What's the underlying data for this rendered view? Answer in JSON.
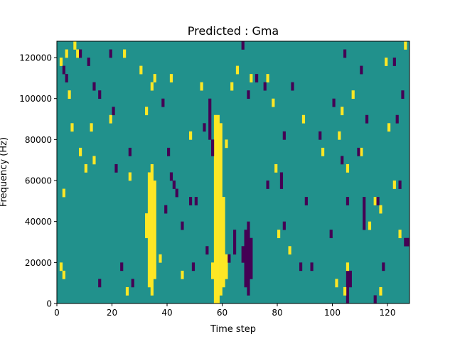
{
  "chart_data": {
    "type": "heatmap",
    "title": "Predicted : Gma",
    "xlabel": "Time step",
    "ylabel": "Frequency (Hz)",
    "xlim": [
      0,
      128
    ],
    "ylim": [
      0,
      128000
    ],
    "n_cols": 128,
    "n_rows": 32,
    "row_hz": 4000,
    "xticks": [
      0,
      20,
      40,
      60,
      80,
      100,
      120
    ],
    "xtick_labels": [
      "0",
      "20",
      "40",
      "60",
      "80",
      "100",
      "120"
    ],
    "yticks": [
      0,
      20000,
      40000,
      60000,
      80000,
      100000,
      120000
    ],
    "ytick_labels": [
      "0",
      "20000",
      "40000",
      "60000",
      "80000",
      "100000",
      "120000"
    ],
    "colormap": {
      "0": "#440154",
      "1": "#21918c",
      "2": "#fde725"
    },
    "background_value": 1,
    "segments": [
      [
        33,
        2,
        15,
        2
      ],
      [
        34,
        1,
        16,
        2
      ],
      [
        35,
        3,
        14,
        2
      ],
      [
        32,
        8,
        10,
        2
      ],
      [
        57,
        0,
        22,
        2
      ],
      [
        58,
        0,
        22,
        2
      ],
      [
        59,
        1,
        21,
        2
      ],
      [
        60,
        2,
        12,
        2
      ],
      [
        61,
        3,
        5,
        2
      ],
      [
        56,
        3,
        4,
        2
      ],
      [
        68,
        2,
        8,
        0
      ],
      [
        69,
        1,
        9,
        0
      ],
      [
        70,
        3,
        7,
        0
      ],
      [
        67,
        5,
        6,
        0
      ],
      [
        105,
        0,
        3,
        0
      ],
      [
        106,
        2,
        3,
        0
      ],
      [
        126,
        7,
        7,
        0
      ],
      [
        127,
        7,
        7,
        0
      ],
      [
        81,
        14,
        15,
        0
      ],
      [
        55,
        20,
        24,
        0
      ],
      [
        56,
        18,
        19,
        0
      ],
      [
        64,
        6,
        8,
        0
      ],
      [
        111,
        9,
        12,
        0
      ]
    ],
    "points": [
      [
        1,
        29,
        2
      ],
      [
        3,
        30,
        2
      ],
      [
        6,
        31,
        2
      ],
      [
        7,
        30,
        2
      ],
      [
        2,
        13,
        2
      ],
      [
        1,
        4,
        2
      ],
      [
        2,
        3,
        2
      ],
      [
        4,
        25,
        2
      ],
      [
        5,
        21,
        2
      ],
      [
        8,
        18,
        2
      ],
      [
        10,
        16,
        2
      ],
      [
        12,
        21,
        2
      ],
      [
        13,
        17,
        2
      ],
      [
        19,
        22,
        2
      ],
      [
        24,
        30,
        2
      ],
      [
        26,
        15,
        2
      ],
      [
        30,
        28,
        2
      ],
      [
        32,
        23,
        2
      ],
      [
        34,
        26,
        2
      ],
      [
        35,
        27,
        2
      ],
      [
        41,
        27,
        2
      ],
      [
        48,
        20,
        2
      ],
      [
        52,
        26,
        2
      ],
      [
        61,
        19,
        2
      ],
      [
        63,
        26,
        2
      ],
      [
        65,
        28,
        2
      ],
      [
        70,
        27,
        2
      ],
      [
        76,
        27,
        2
      ],
      [
        79,
        16,
        2
      ],
      [
        80,
        8,
        2
      ],
      [
        78,
        24,
        2
      ],
      [
        84,
        6,
        2
      ],
      [
        89,
        22,
        2
      ],
      [
        96,
        18,
        2
      ],
      [
        102,
        20,
        2
      ],
      [
        103,
        23,
        2
      ],
      [
        105,
        16,
        2
      ],
      [
        105,
        4,
        2
      ],
      [
        107,
        25,
        2
      ],
      [
        110,
        18,
        2
      ],
      [
        113,
        9,
        2
      ],
      [
        115,
        12,
        2
      ],
      [
        117,
        11,
        2
      ],
      [
        120,
        21,
        2
      ],
      [
        122,
        14,
        2
      ],
      [
        119,
        29,
        2
      ],
      [
        126,
        31,
        2
      ],
      [
        124,
        8,
        2
      ],
      [
        101,
        2,
        2
      ],
      [
        117,
        1,
        2
      ],
      [
        104,
        1,
        2
      ],
      [
        25,
        1,
        2
      ],
      [
        45,
        3,
        2
      ],
      [
        37,
        5,
        2
      ],
      [
        2,
        28,
        0
      ],
      [
        3,
        27,
        0
      ],
      [
        8,
        30,
        0
      ],
      [
        11,
        29,
        0
      ],
      [
        13,
        26,
        0
      ],
      [
        15,
        2,
        0
      ],
      [
        15,
        25,
        0
      ],
      [
        19,
        30,
        0
      ],
      [
        20,
        23,
        0
      ],
      [
        21,
        16,
        0
      ],
      [
        23,
        4,
        0
      ],
      [
        27,
        2,
        0
      ],
      [
        26,
        18,
        0
      ],
      [
        38,
        24,
        0
      ],
      [
        39,
        11,
        0
      ],
      [
        40,
        18,
        0
      ],
      [
        42,
        14,
        0
      ],
      [
        45,
        9,
        0
      ],
      [
        49,
        4,
        0
      ],
      [
        48,
        12,
        0
      ],
      [
        50,
        12,
        0
      ],
      [
        53,
        21,
        0
      ],
      [
        54,
        6,
        0
      ],
      [
        62,
        5,
        0
      ],
      [
        67,
        31,
        0
      ],
      [
        69,
        25,
        0
      ],
      [
        72,
        27,
        0
      ],
      [
        75,
        26,
        0
      ],
      [
        76,
        14,
        0
      ],
      [
        82,
        20,
        0
      ],
      [
        85,
        26,
        0
      ],
      [
        88,
        4,
        0
      ],
      [
        90,
        12,
        0
      ],
      [
        92,
        4,
        0
      ],
      [
        95,
        20,
        0
      ],
      [
        99,
        8,
        0
      ],
      [
        100,
        24,
        0
      ],
      [
        103,
        17,
        0
      ],
      [
        104,
        30,
        0
      ],
      [
        105,
        12,
        0
      ],
      [
        109,
        18,
        0
      ],
      [
        110,
        28,
        0
      ],
      [
        112,
        22,
        0
      ],
      [
        115,
        0,
        0
      ],
      [
        116,
        12,
        0
      ],
      [
        118,
        4,
        0
      ],
      [
        122,
        29,
        0
      ],
      [
        124,
        14,
        0
      ],
      [
        125,
        25,
        0
      ],
      [
        123,
        22,
        0
      ],
      [
        82,
        9,
        0
      ],
      [
        41,
        15,
        0
      ],
      [
        43,
        13,
        0
      ]
    ]
  }
}
